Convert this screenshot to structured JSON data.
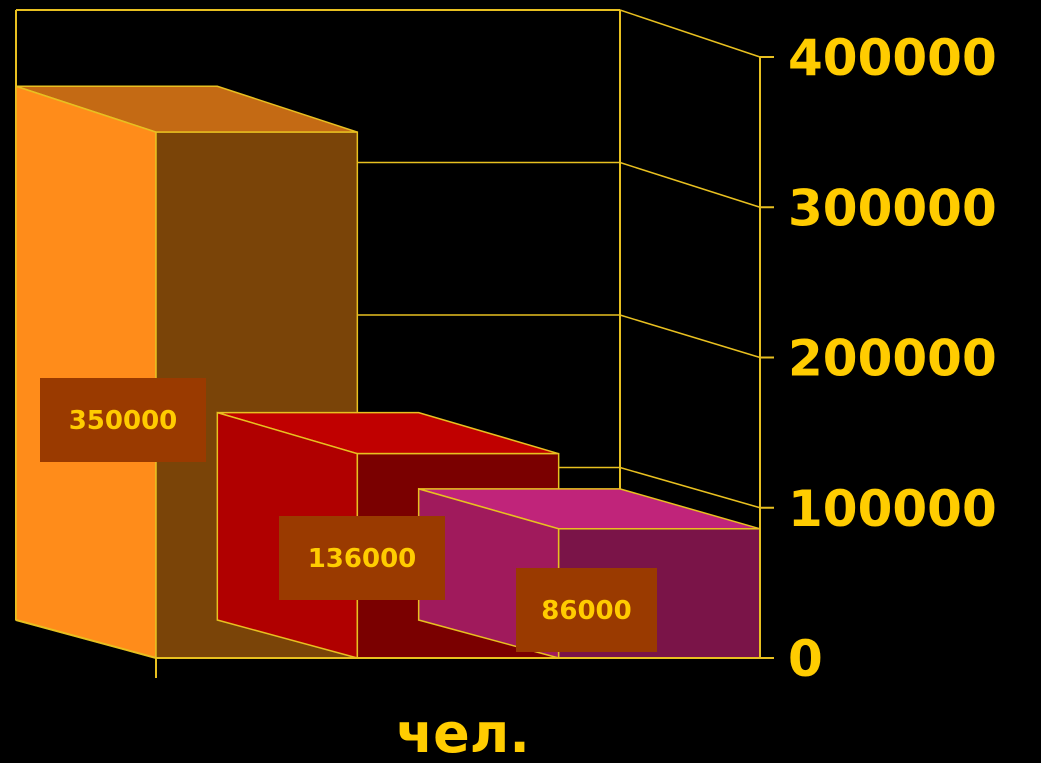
{
  "chart_data": {
    "type": "bar",
    "style": "3d-column",
    "categories": [
      "",
      "",
      ""
    ],
    "values": [
      350000,
      136000,
      86000
    ],
    "data_labels": [
      "350000",
      "136000",
      "86000"
    ],
    "ylabel": "",
    "xlabel": "чел.",
    "ylim": [
      0,
      400000
    ],
    "yticks": [
      0,
      100000,
      200000,
      300000,
      400000
    ],
    "ytick_labels": [
      "0",
      "100000",
      "200000",
      "300000",
      "400000"
    ],
    "grid": true,
    "legend": "none",
    "colors": {
      "background": "#000000",
      "axis": "#e8c020",
      "tick_text": "#ffcc00",
      "label_box": "#9a3a00",
      "label_text": "#ffcc00",
      "bars": [
        {
          "front": "#7a4408",
          "side": "#ff8c1a",
          "top": "#c46a14"
        },
        {
          "front": "#7a0000",
          "side": "#b00000",
          "top": "#c00000"
        },
        {
          "front": "#7a1448",
          "side": "#a01a5c",
          "top": "#c0247a"
        }
      ]
    }
  }
}
